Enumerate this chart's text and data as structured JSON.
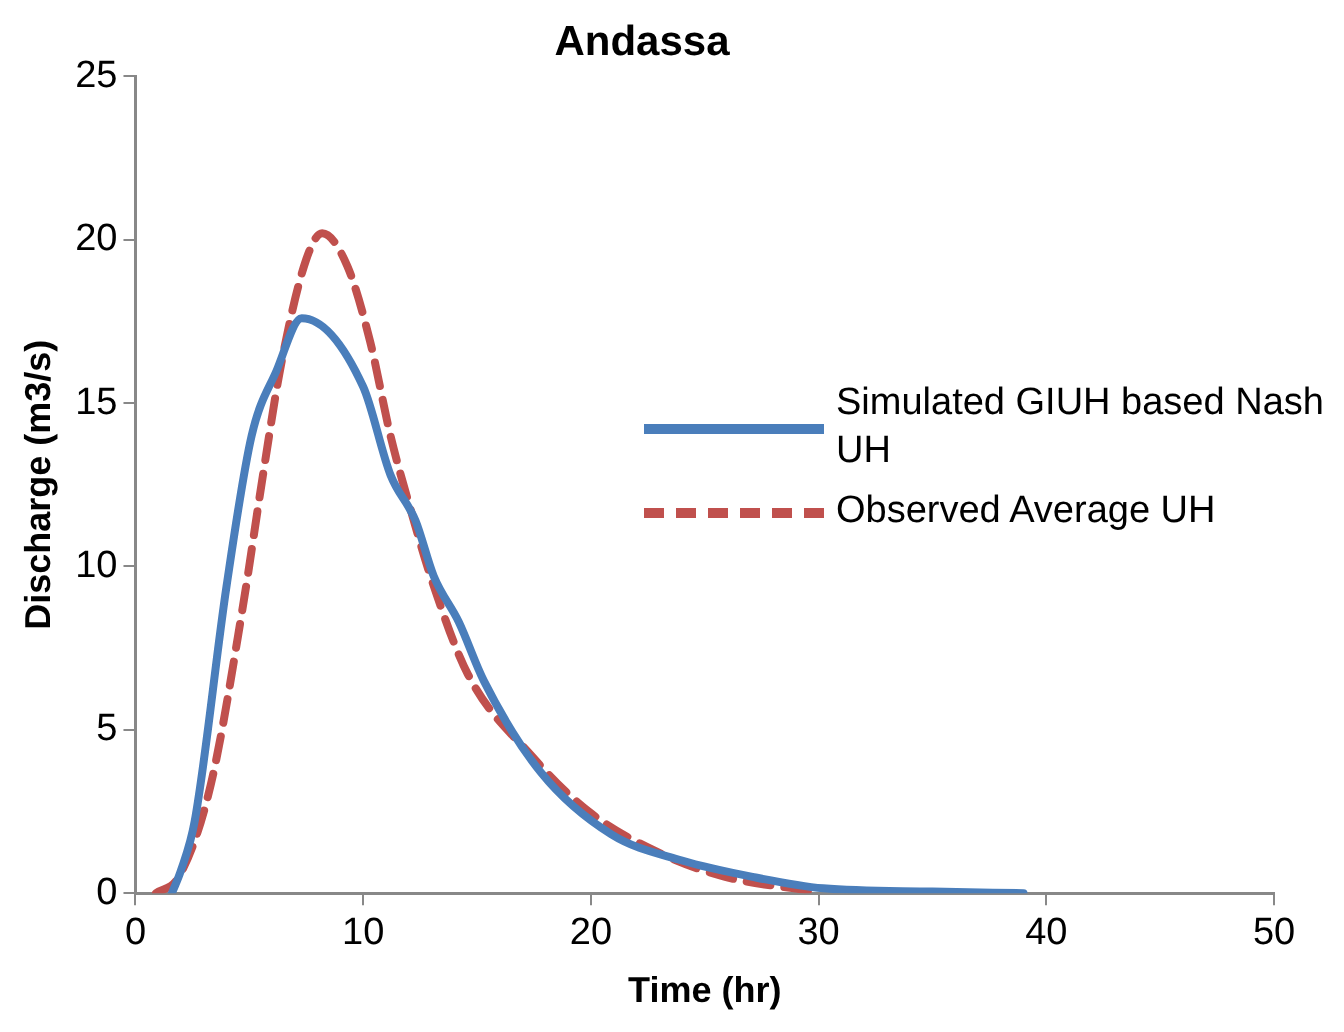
{
  "chart_data": {
    "type": "line",
    "title": "Andassa",
    "xlabel": "Time (hr)",
    "ylabel": "Discharge (m3/s)",
    "xlim": [
      0,
      50
    ],
    "xticks": [
      0,
      10,
      20,
      30,
      40,
      50
    ],
    "ylim": [
      0,
      25
    ],
    "yticks": [
      0,
      5,
      10,
      15,
      20,
      25
    ],
    "grid": false,
    "legend": "right",
    "marker": "none",
    "series": [
      {
        "name": "Simulated GIUH based Nash UH",
        "color": "#4a7ebb",
        "line_style": "solid",
        "x": [
          1.6,
          2.0,
          2.6,
          4.0,
          5.1,
          6.2,
          7.3,
          10.0,
          11.2,
          12.3,
          13.1,
          14.2,
          15.3,
          17.8,
          20.9,
          24.0,
          27.1,
          30.2,
          35,
          39
        ],
        "values": [
          0,
          0.7,
          2.2,
          9.4,
          14.0,
          16.0,
          17.6,
          15.5,
          12.8,
          11.4,
          9.7,
          8.3,
          6.5,
          3.7,
          1.8,
          1.0,
          0.5,
          0.15,
          0.05,
          0
        ]
      },
      {
        "name": "Observed Average UH",
        "color": "#c0504d",
        "line_style": "dashed",
        "x": [
          0.9,
          1.9,
          3.3,
          4.7,
          5.6,
          6.4,
          7.5,
          8.2,
          9.3,
          10.3,
          11.2,
          12.1,
          13.1,
          14.6,
          17.4,
          19.9,
          23.1,
          25.9,
          29.9
        ],
        "values": [
          0,
          0.5,
          3.3,
          8.7,
          12.8,
          16.2,
          19.4,
          20.2,
          19.2,
          16.9,
          14.0,
          11.7,
          9.4,
          6.7,
          4.2,
          2.5,
          1.2,
          0.5,
          0.05
        ]
      }
    ]
  }
}
